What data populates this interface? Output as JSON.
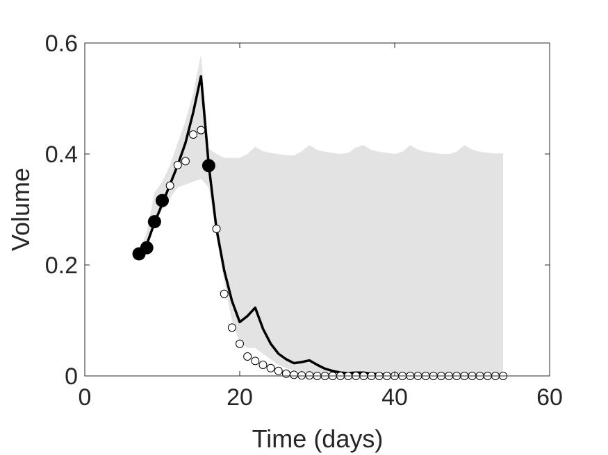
{
  "chart_data": {
    "type": "line",
    "xlabel": "Time (days)",
    "ylabel": "Volume",
    "xlim": [
      0,
      60
    ],
    "ylim": [
      0,
      0.6
    ],
    "xticks": [
      0,
      20,
      40,
      60
    ],
    "yticks": [
      0,
      0.2,
      0.4,
      0.6
    ],
    "xtick_labels": [
      "0",
      "20",
      "40",
      "60"
    ],
    "ytick_labels": [
      "0",
      "0.2",
      "0.4",
      "0.6"
    ],
    "grid": false,
    "box": true,
    "colors": {
      "band": "#e3e3e3",
      "line": "#000000",
      "axes": "#262626"
    },
    "series": [
      {
        "type": "band",
        "x": [
          7,
          8,
          9,
          10,
          11,
          12,
          13,
          14,
          15,
          16,
          17,
          18,
          19,
          20,
          21,
          22,
          23,
          24,
          25,
          26,
          27,
          28,
          29,
          30,
          31,
          32,
          33,
          34,
          35,
          36,
          37,
          38,
          39,
          40,
          41,
          42,
          43,
          44,
          45,
          46,
          47,
          48,
          49,
          50,
          51,
          52,
          53,
          54
        ],
        "upper": [
          0.22,
          0.26,
          0.33,
          0.35,
          0.38,
          0.42,
          0.46,
          0.51,
          0.58,
          0.41,
          0.4,
          0.393,
          0.393,
          0.393,
          0.4,
          0.413,
          0.405,
          0.402,
          0.4,
          0.398,
          0.397,
          0.405,
          0.416,
          0.407,
          0.404,
          0.402,
          0.4,
          0.402,
          0.412,
          0.416,
          0.407,
          0.404,
          0.402,
          0.4,
          0.404,
          0.416,
          0.408,
          0.404,
          0.402,
          0.4,
          0.4,
          0.404,
          0.416,
          0.408,
          0.404,
          0.402,
          0.401,
          0.401
        ],
        "lower": [
          0.21,
          0.23,
          0.27,
          0.3,
          0.32,
          0.34,
          0.345,
          0.35,
          0.355,
          0.34,
          0.25,
          0.17,
          0.1,
          0.06,
          0.05,
          0.05,
          0.04,
          0.03,
          0.02,
          0.014,
          0.01,
          0.008,
          0.006,
          0.005,
          0.004,
          0.003,
          0.002,
          0.002,
          0.001,
          0.001,
          0,
          0,
          0,
          0,
          0,
          0,
          0,
          0,
          0,
          0,
          0,
          0,
          0,
          0,
          0,
          0,
          0,
          0
        ]
      },
      {
        "type": "line",
        "x": [
          7,
          8,
          9,
          10,
          11,
          12,
          13,
          14,
          15,
          16,
          17,
          18,
          19,
          20,
          21,
          22,
          23,
          24,
          25,
          26,
          27,
          28,
          29,
          30,
          31,
          32,
          33,
          34,
          35,
          36,
          37,
          38,
          39,
          40,
          45,
          50,
          54
        ],
        "y": [
          0.22,
          0.237,
          0.276,
          0.31,
          0.345,
          0.38,
          0.42,
          0.475,
          0.54,
          0.38,
          0.265,
          0.19,
          0.135,
          0.097,
          0.108,
          0.123,
          0.085,
          0.058,
          0.04,
          0.03,
          0.023,
          0.025,
          0.028,
          0.02,
          0.013,
          0.009,
          0.006,
          0.005,
          0.006,
          0.006,
          0.004,
          0.003,
          0.002,
          0.001,
          0,
          0,
          0
        ]
      },
      {
        "type": "scatter",
        "marker": "open-circle",
        "x": [
          11,
          12,
          13,
          14,
          15,
          17,
          18,
          19,
          20,
          21,
          22,
          23,
          24,
          25,
          26,
          27,
          28,
          29,
          30,
          31,
          32,
          33,
          34,
          35,
          36,
          37,
          38,
          39,
          40,
          41,
          42,
          43,
          44,
          45,
          46,
          47,
          48,
          49,
          50,
          51,
          52,
          53,
          54
        ],
        "y": [
          0.343,
          0.38,
          0.387,
          0.435,
          0.443,
          0.265,
          0.148,
          0.087,
          0.058,
          0.035,
          0.027,
          0.02,
          0.014,
          0.009,
          0.004,
          0.002,
          0.001,
          0.001,
          0,
          0,
          0,
          0,
          0,
          0,
          0,
          0,
          0,
          0,
          0,
          0,
          0,
          0,
          0,
          0,
          0,
          0,
          0,
          0,
          0,
          0,
          0,
          0,
          0
        ]
      },
      {
        "type": "scatter",
        "marker": "filled-circle",
        "x": [
          7,
          8,
          9,
          10,
          16
        ],
        "y": [
          0.22,
          0.231,
          0.278,
          0.316,
          0.379
        ]
      }
    ]
  }
}
